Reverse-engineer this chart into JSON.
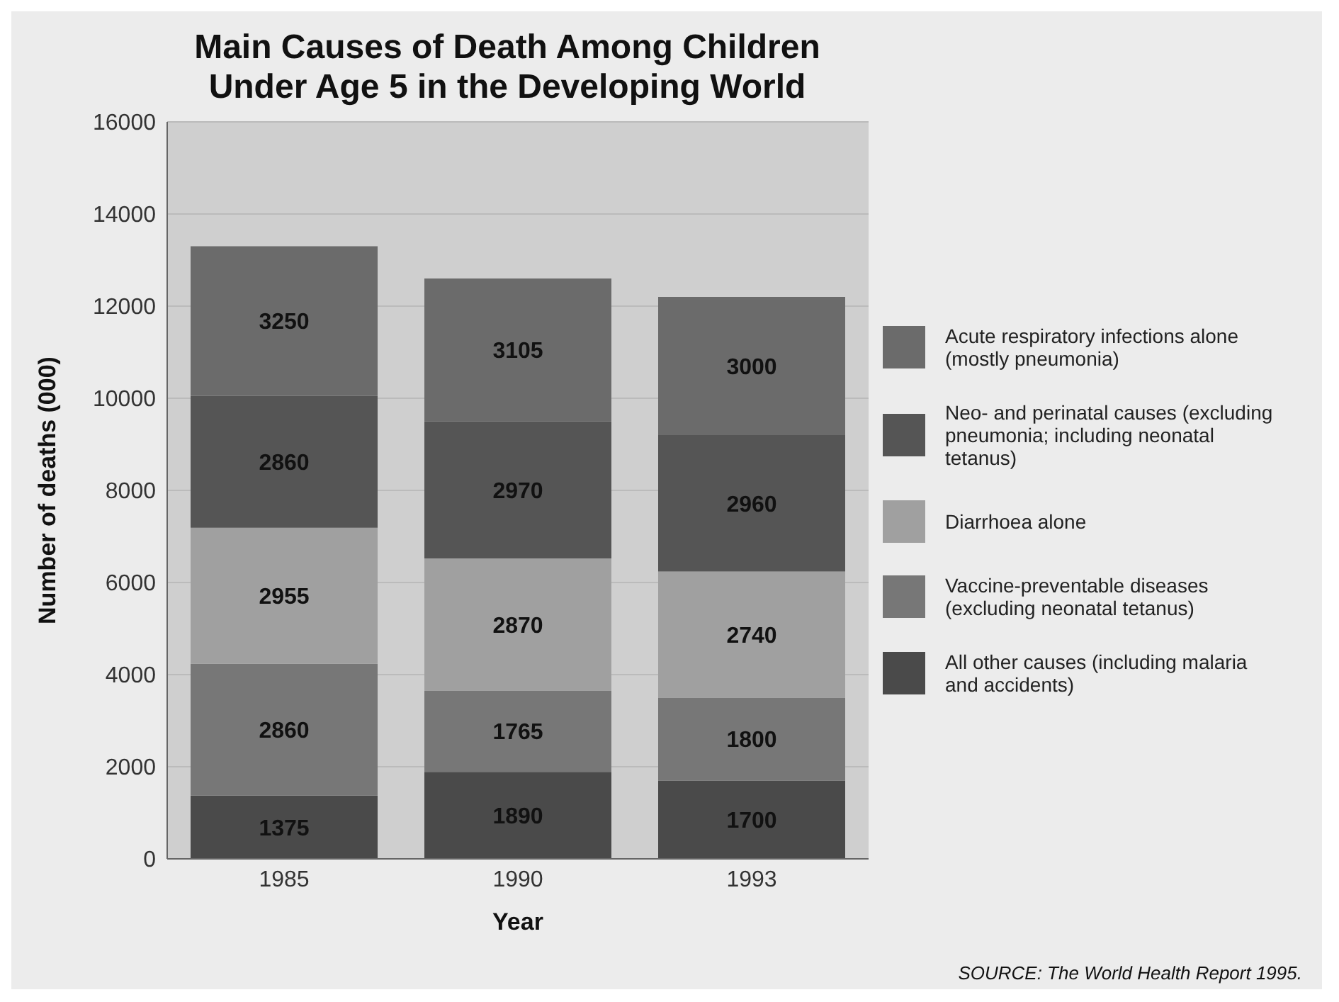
{
  "chart_data": {
    "type": "bar",
    "title": "Main Causes of Death Among Children\nUnder Age 5 in the Developing World",
    "xlabel": "Year",
    "ylabel": "Number of deaths (000)",
    "categories": [
      "1985",
      "1990",
      "1993"
    ],
    "series": [
      {
        "name": "All other causes (including malaria and accidents)",
        "color": "#4a4a4a",
        "values": [
          1375,
          1890,
          1700
        ]
      },
      {
        "name": "Vaccine-preventable diseases (excluding neonatal tetanus)",
        "color": "#777777",
        "values": [
          2860,
          1765,
          1800
        ]
      },
      {
        "name": "Diarrhoea alone",
        "color": "#a0a0a0",
        "values": [
          2955,
          2870,
          2740
        ]
      },
      {
        "name": "Neo- and perinatal causes (excluding pneumonia; including neonatal tetanus)",
        "color": "#555555",
        "values": [
          2860,
          2970,
          2960
        ]
      },
      {
        "name": "Acute respiratory infections alone (mostly pneumonia)",
        "color": "#6b6b6b",
        "values": [
          3250,
          3105,
          3000
        ]
      }
    ],
    "stacked": true,
    "data_labels": true,
    "ylim": [
      0,
      16000
    ],
    "yticks": [
      0,
      2000,
      4000,
      6000,
      8000,
      10000,
      12000,
      14000,
      16000
    ],
    "grid": "y",
    "legend": "right",
    "annotations": [
      "SOURCE: The World Health Report 1995."
    ]
  }
}
